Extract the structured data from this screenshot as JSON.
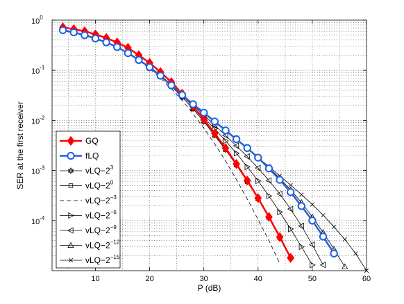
{
  "chart_data": {
    "type": "line",
    "xlabel": "P (dB)",
    "ylabel": "SER at the first receiver",
    "xlim": [
      2,
      60
    ],
    "ylim": [
      1e-05,
      1
    ],
    "yscale": "log",
    "grid": "major-and-minor dotted",
    "legend_position": "bottom-left",
    "x_ticks": [
      10,
      20,
      30,
      40,
      50,
      60
    ],
    "y_ticks": [
      {
        "base": "10",
        "exp": "0",
        "value": 1
      },
      {
        "base": "10",
        "exp": "-1",
        "value": 0.1
      },
      {
        "base": "10",
        "exp": "-2",
        "value": 0.01
      },
      {
        "base": "10",
        "exp": "-3",
        "value": 0.001
      },
      {
        "base": "10",
        "exp": "-4",
        "value": 0.0001
      }
    ],
    "series": [
      {
        "name": "GQ",
        "legend_base": "GQ",
        "legend_exp": "",
        "color": "#ff0000",
        "marker": "diamond",
        "line": "solid",
        "width": 2.5,
        "x": [
          4,
          6,
          8,
          10,
          12,
          14,
          16,
          18,
          20,
          22,
          24,
          26,
          28,
          30,
          32,
          34,
          36,
          38,
          40,
          42,
          44,
          46
        ],
        "y": [
          0.72,
          0.66,
          0.6,
          0.52,
          0.44,
          0.36,
          0.28,
          0.2,
          0.14,
          0.092,
          0.058,
          0.034,
          0.019,
          0.0105,
          0.0055,
          0.0028,
          0.00135,
          0.00063,
          0.00028,
          0.000118,
          4.7e-05,
          1.8e-05
        ]
      },
      {
        "name": "fLQ",
        "legend_base": "fLQ",
        "legend_exp": "",
        "color": "#1f5fe0",
        "marker": "circle",
        "line": "solid",
        "width": 2.5,
        "x": [
          4,
          6,
          8,
          10,
          12,
          14,
          16,
          18,
          20,
          22,
          24,
          26,
          28,
          30,
          32,
          34,
          36,
          38,
          40,
          42,
          44,
          46,
          48,
          50,
          52,
          54
        ],
        "y": [
          0.63,
          0.57,
          0.5,
          0.43,
          0.36,
          0.29,
          0.22,
          0.16,
          0.115,
          0.078,
          0.05,
          0.032,
          0.021,
          0.0142,
          0.0095,
          0.0063,
          0.0042,
          0.0028,
          0.0018,
          0.0011,
          0.00065,
          0.00037,
          0.000195,
          0.0001,
          4.8e-05,
          2.2e-05
        ]
      },
      {
        "name": "vLQ-2^3",
        "legend_base": "vLQ−2",
        "legend_exp": "3",
        "color": "#000000",
        "marker": "hexagram",
        "line": "solid",
        "width": 0.8,
        "x": [
          4,
          6,
          8,
          10,
          12,
          14,
          16,
          18,
          20,
          22,
          24,
          26,
          28,
          30,
          32,
          34,
          36,
          38,
          40,
          42,
          44,
          46
        ],
        "y": [
          0.63,
          0.57,
          0.5,
          0.43,
          0.36,
          0.29,
          0.22,
          0.16,
          0.113,
          0.075,
          0.048,
          0.029,
          0.017,
          0.0095,
          0.005,
          0.0026,
          0.00128,
          0.0006,
          0.00027,
          0.000115,
          4.6e-05,
          1.8e-05
        ]
      },
      {
        "name": "vLQ-2^0",
        "legend_base": "vLQ−2",
        "legend_exp": "0",
        "color": "#000000",
        "marker": "square",
        "line": "solid",
        "width": 0.8,
        "x": [
          4,
          6,
          8,
          10,
          12,
          14,
          16,
          18,
          20,
          22,
          24,
          26,
          28,
          30,
          32,
          34,
          36,
          38,
          40,
          42,
          44,
          46
        ],
        "y": [
          0.63,
          0.57,
          0.5,
          0.43,
          0.36,
          0.29,
          0.22,
          0.16,
          0.113,
          0.075,
          0.048,
          0.029,
          0.017,
          0.0095,
          0.005,
          0.0026,
          0.00128,
          0.0006,
          0.00027,
          0.000115,
          4.6e-05,
          1.8e-05
        ]
      },
      {
        "name": "vLQ-2^-3",
        "legend_base": "vLQ−2",
        "legend_exp": "−3",
        "color": "#000000",
        "marker": "none",
        "line": "dashed",
        "width": 0.8,
        "x": [
          4,
          6,
          8,
          10,
          12,
          14,
          16,
          18,
          20,
          22,
          24,
          26,
          28,
          30,
          32,
          34,
          36,
          38,
          40,
          42,
          44
        ],
        "y": [
          0.63,
          0.57,
          0.5,
          0.43,
          0.36,
          0.29,
          0.22,
          0.158,
          0.108,
          0.07,
          0.043,
          0.025,
          0.0135,
          0.007,
          0.0034,
          0.00155,
          0.00066,
          0.00027,
          0.000105,
          4e-05,
          1.4e-05
        ]
      },
      {
        "name": "vLQ-2^-6",
        "legend_base": "vLQ−2",
        "legend_exp": "−6",
        "color": "#000000",
        "marker": "triangle-right",
        "line": "solid",
        "width": 0.8,
        "x": [
          4,
          6,
          8,
          10,
          12,
          14,
          16,
          18,
          20,
          22,
          24,
          26,
          28,
          30,
          32,
          34,
          36,
          38,
          40,
          42,
          44,
          46,
          48,
          50
        ],
        "y": [
          0.63,
          0.57,
          0.5,
          0.43,
          0.36,
          0.29,
          0.22,
          0.16,
          0.113,
          0.076,
          0.049,
          0.031,
          0.019,
          0.0115,
          0.0068,
          0.0039,
          0.0022,
          0.00118,
          0.00062,
          0.00031,
          0.000148,
          6.8e-05,
          3e-05,
          1.3e-05
        ]
      },
      {
        "name": "vLQ-2^-9",
        "legend_base": "vLQ−2",
        "legend_exp": "−9",
        "color": "#000000",
        "marker": "triangle-left",
        "line": "solid",
        "width": 0.8,
        "x": [
          4,
          6,
          8,
          10,
          12,
          14,
          16,
          18,
          20,
          22,
          24,
          26,
          28,
          30,
          32,
          34,
          36,
          38,
          40,
          42,
          44,
          46,
          48,
          50,
          52
        ],
        "y": [
          0.63,
          0.57,
          0.5,
          0.43,
          0.36,
          0.29,
          0.22,
          0.16,
          0.113,
          0.077,
          0.05,
          0.032,
          0.02,
          0.0128,
          0.008,
          0.005,
          0.0031,
          0.0019,
          0.00112,
          0.00063,
          0.00034,
          0.00017,
          7.8e-05,
          3.3e-05,
          1.3e-05
        ]
      },
      {
        "name": "vLQ-2^-12",
        "legend_base": "vLQ−2",
        "legend_exp": "−12",
        "color": "#000000",
        "marker": "triangle-up",
        "line": "solid",
        "width": 0.8,
        "x": [
          4,
          6,
          8,
          10,
          12,
          14,
          16,
          18,
          20,
          22,
          24,
          26,
          28,
          30,
          32,
          34,
          36,
          38,
          40,
          42,
          44,
          46,
          48,
          50,
          52,
          54,
          56
        ],
        "y": [
          0.63,
          0.57,
          0.5,
          0.43,
          0.36,
          0.29,
          0.22,
          0.16,
          0.115,
          0.078,
          0.05,
          0.032,
          0.021,
          0.0142,
          0.0095,
          0.0063,
          0.0042,
          0.0028,
          0.0018,
          0.00115,
          0.0007,
          0.00041,
          0.00023,
          0.000118,
          5.8e-05,
          2.7e-05,
          1.2e-05
        ]
      },
      {
        "name": "vLQ-2^-15",
        "legend_base": "vLQ−2",
        "legend_exp": "−15",
        "color": "#000000",
        "marker": "x",
        "line": "solid",
        "width": 0.8,
        "x": [
          4,
          6,
          8,
          10,
          12,
          14,
          16,
          18,
          20,
          22,
          24,
          26,
          28,
          30,
          32,
          34,
          36,
          38,
          40,
          42,
          44,
          46,
          48,
          50,
          52,
          54,
          56,
          58,
          60
        ],
        "y": [
          0.63,
          0.57,
          0.5,
          0.43,
          0.36,
          0.29,
          0.22,
          0.16,
          0.115,
          0.078,
          0.05,
          0.032,
          0.021,
          0.0142,
          0.0095,
          0.0063,
          0.0042,
          0.0028,
          0.0018,
          0.0012,
          0.00078,
          0.00051,
          0.00033,
          0.00021,
          0.000128,
          7.5e-05,
          4.2e-05,
          2.2e-05,
          1e-05
        ]
      }
    ]
  }
}
